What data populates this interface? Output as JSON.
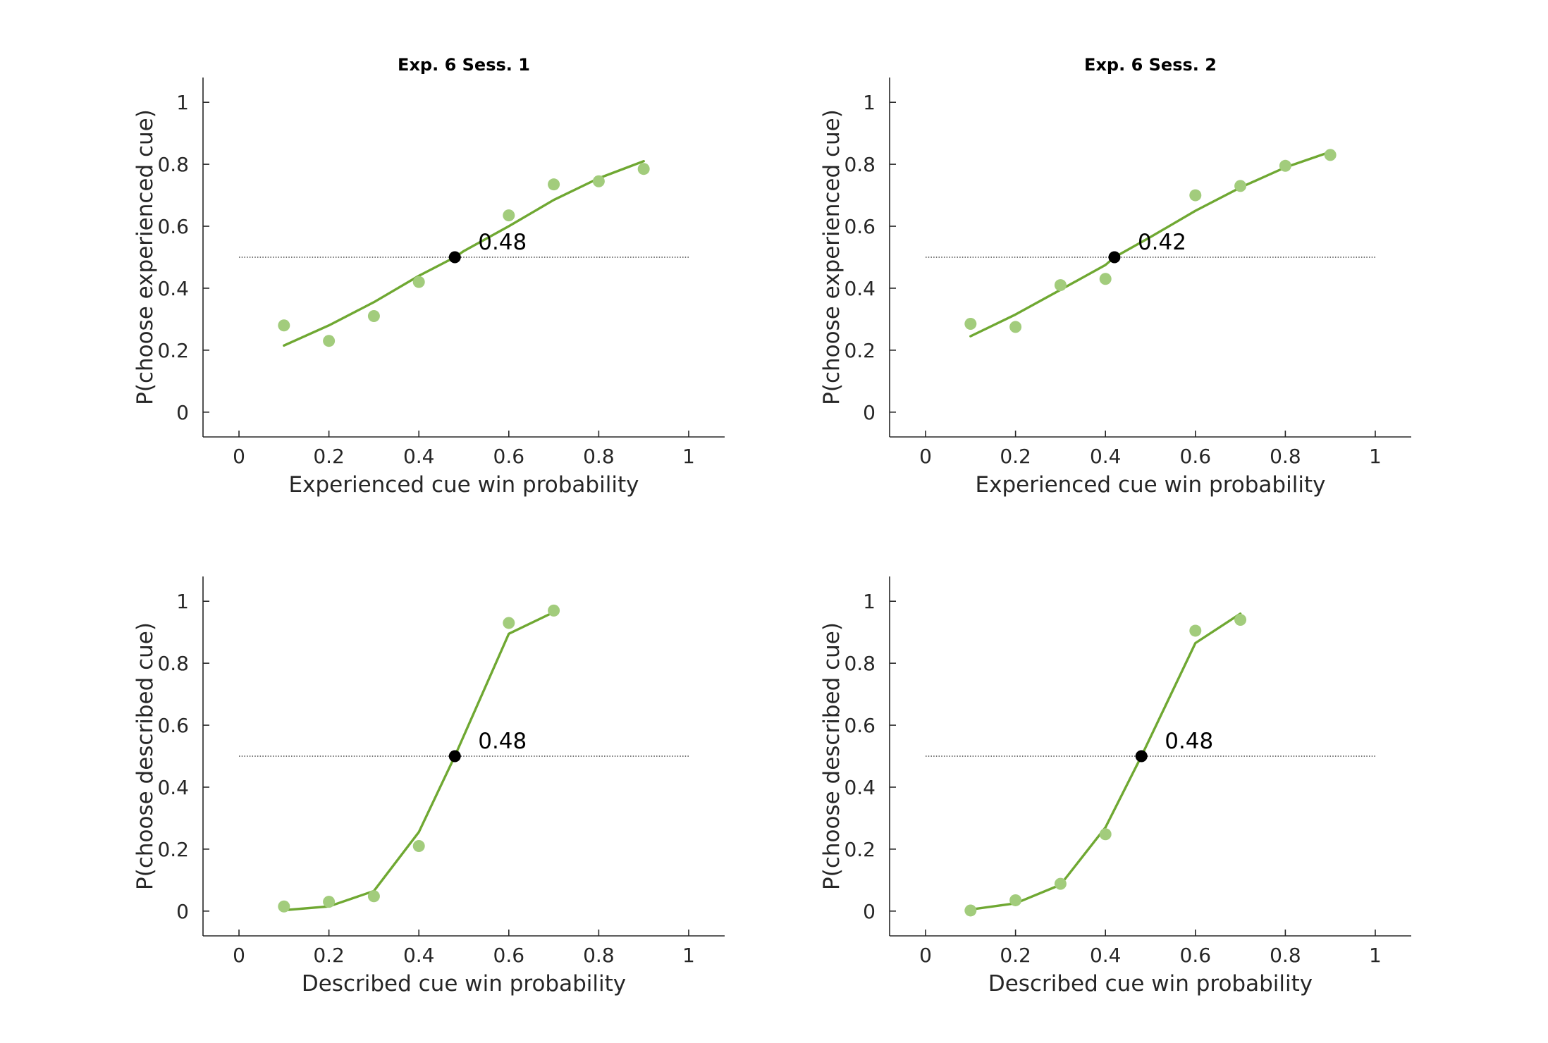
{
  "colors": {
    "fit_line": "#6fa832",
    "data_point": "#a2cc7c",
    "threshold_point": "#000000",
    "axis": "#262626"
  },
  "chart_data": [
    {
      "type": "line",
      "title": "Exp. 6 Sess. 1",
      "xlabel": "Experienced cue win probability",
      "ylabel": "P(choose experienced cue)",
      "xlim": [
        -0.08,
        1.08
      ],
      "ylim": [
        -0.08,
        1.08
      ],
      "xticks": [
        0,
        0.2,
        0.4,
        0.6,
        0.8,
        1
      ],
      "yticks": [
        0,
        0.2,
        0.4,
        0.6,
        0.8,
        1
      ],
      "xtick_labels": [
        "0",
        "0.2",
        "0.4",
        "0.6",
        "0.8",
        "1"
      ],
      "ytick_labels": [
        "0",
        "0.2",
        "0.4",
        "0.6",
        "0.8",
        "1"
      ],
      "reference_line": {
        "y": 0.5,
        "x_range": [
          0,
          1
        ],
        "style": "dotted"
      },
      "series": [
        {
          "kind": "fit",
          "x": [
            0.1,
            0.2,
            0.3,
            0.4,
            0.48,
            0.5,
            0.6,
            0.7,
            0.8,
            0.9
          ],
          "y": [
            0.215,
            0.28,
            0.355,
            0.44,
            0.5,
            0.52,
            0.6,
            0.685,
            0.755,
            0.81
          ]
        },
        {
          "kind": "observed",
          "x": [
            0.1,
            0.2,
            0.3,
            0.4,
            0.6,
            0.7,
            0.8,
            0.9
          ],
          "y": [
            0.28,
            0.23,
            0.31,
            0.42,
            0.635,
            0.735,
            0.745,
            0.785
          ]
        }
      ],
      "threshold": {
        "x": 0.48,
        "y": 0.5,
        "label": "0.48"
      }
    },
    {
      "type": "line",
      "title": "Exp. 6 Sess. 2",
      "xlabel": "Experienced cue win probability",
      "ylabel": "P(choose experienced cue)",
      "xlim": [
        -0.08,
        1.08
      ],
      "ylim": [
        -0.08,
        1.08
      ],
      "xticks": [
        0,
        0.2,
        0.4,
        0.6,
        0.8,
        1
      ],
      "yticks": [
        0,
        0.2,
        0.4,
        0.6,
        0.8,
        1
      ],
      "xtick_labels": [
        "0",
        "0.2",
        "0.4",
        "0.6",
        "0.8",
        "1"
      ],
      "ytick_labels": [
        "0",
        "0.2",
        "0.4",
        "0.6",
        "0.8",
        "1"
      ],
      "reference_line": {
        "y": 0.5,
        "x_range": [
          0,
          1
        ],
        "style": "dotted"
      },
      "series": [
        {
          "kind": "fit",
          "x": [
            0.1,
            0.2,
            0.3,
            0.4,
            0.42,
            0.5,
            0.6,
            0.7,
            0.8,
            0.9
          ],
          "y": [
            0.245,
            0.315,
            0.395,
            0.475,
            0.5,
            0.565,
            0.65,
            0.725,
            0.79,
            0.84
          ]
        },
        {
          "kind": "observed",
          "x": [
            0.1,
            0.2,
            0.3,
            0.4,
            0.6,
            0.7,
            0.8,
            0.9
          ],
          "y": [
            0.285,
            0.275,
            0.41,
            0.43,
            0.7,
            0.73,
            0.795,
            0.83
          ]
        }
      ],
      "threshold": {
        "x": 0.42,
        "y": 0.5,
        "label": "0.42"
      }
    },
    {
      "type": "line",
      "title": "",
      "xlabel": "Described cue win probability",
      "ylabel": "P(choose described cue)",
      "xlim": [
        -0.08,
        1.08
      ],
      "ylim": [
        -0.08,
        1.08
      ],
      "xticks": [
        0,
        0.2,
        0.4,
        0.6,
        0.8,
        1
      ],
      "yticks": [
        0,
        0.2,
        0.4,
        0.6,
        0.8,
        1
      ],
      "xtick_labels": [
        "0",
        "0.2",
        "0.4",
        "0.6",
        "0.8",
        "1"
      ],
      "ytick_labels": [
        "0",
        "0.2",
        "0.4",
        "0.6",
        "0.8",
        "1"
      ],
      "reference_line": {
        "y": 0.5,
        "x_range": [
          0,
          1
        ],
        "style": "dotted"
      },
      "series": [
        {
          "kind": "fit",
          "x": [
            0.1,
            0.2,
            0.3,
            0.4,
            0.48,
            0.6,
            0.7
          ],
          "y": [
            0.003,
            0.015,
            0.065,
            0.255,
            0.5,
            0.895,
            0.965
          ]
        },
        {
          "kind": "observed",
          "x": [
            0.1,
            0.2,
            0.3,
            0.4,
            0.6,
            0.7
          ],
          "y": [
            0.015,
            0.03,
            0.048,
            0.21,
            0.93,
            0.97
          ]
        }
      ],
      "threshold": {
        "x": 0.48,
        "y": 0.5,
        "label": "0.48"
      }
    },
    {
      "type": "line",
      "title": "",
      "xlabel": "Described cue win probability",
      "ylabel": "P(choose described cue)",
      "xlim": [
        -0.08,
        1.08
      ],
      "ylim": [
        -0.08,
        1.08
      ],
      "xticks": [
        0,
        0.2,
        0.4,
        0.6,
        0.8,
        1
      ],
      "yticks": [
        0,
        0.2,
        0.4,
        0.6,
        0.8,
        1
      ],
      "xtick_labels": [
        "0",
        "0.2",
        "0.4",
        "0.6",
        "0.8",
        "1"
      ],
      "ytick_labels": [
        "0",
        "0.2",
        "0.4",
        "0.6",
        "0.8",
        "1"
      ],
      "reference_line": {
        "y": 0.5,
        "x_range": [
          0,
          1
        ],
        "style": "dotted"
      },
      "series": [
        {
          "kind": "fit",
          "x": [
            0.1,
            0.2,
            0.3,
            0.4,
            0.48,
            0.6,
            0.7
          ],
          "y": [
            0.005,
            0.025,
            0.085,
            0.27,
            0.5,
            0.865,
            0.96
          ]
        },
        {
          "kind": "observed",
          "x": [
            0.1,
            0.2,
            0.3,
            0.4,
            0.6,
            0.7
          ],
          "y": [
            0.002,
            0.035,
            0.088,
            0.248,
            0.905,
            0.94
          ]
        }
      ],
      "threshold": {
        "x": 0.48,
        "y": 0.5,
        "label": "0.48"
      }
    }
  ]
}
